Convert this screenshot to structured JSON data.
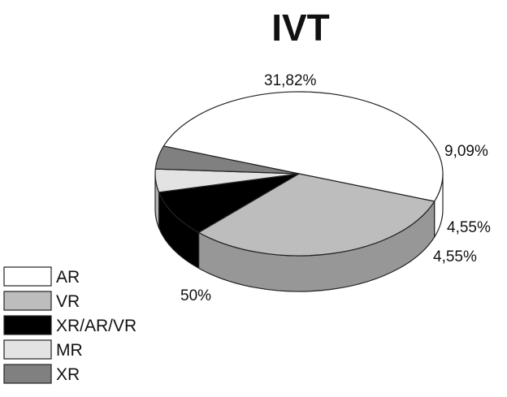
{
  "chart_data": {
    "type": "pie",
    "title": "IVT",
    "three_d": true,
    "legend_position": "bottom-left",
    "slices": [
      {
        "label": "AR",
        "value": 50,
        "display": "50%",
        "color": "#ffffff"
      },
      {
        "label": "VR",
        "value": 31.82,
        "display": "31,82%",
        "color": "#bdbdbd"
      },
      {
        "label": "XR/AR/VR",
        "value": 9.09,
        "display": "9,09%",
        "color": "#000000"
      },
      {
        "label": "MR",
        "value": 4.55,
        "display": "4,55%",
        "color": "#e3e3e3"
      },
      {
        "label": "XR",
        "value": 4.55,
        "display": "4,55%",
        "color": "#808080"
      }
    ]
  }
}
